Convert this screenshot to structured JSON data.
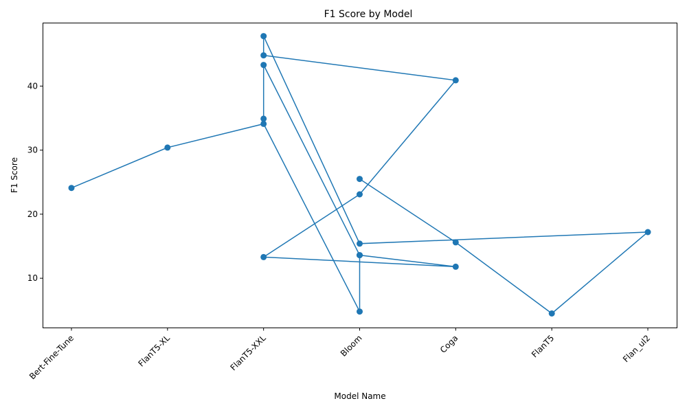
{
  "chart_data": {
    "type": "line",
    "title": "F1 Score by Model",
    "xlabel": "Model Name",
    "ylabel": "F1 Score",
    "categories": [
      "Bert-Fine-Tune",
      "FlanT5-XL",
      "FlanT5-XXL",
      "Bloom",
      "Coga",
      "FlanT5",
      "Flan_ul2"
    ],
    "points": [
      {
        "x": "Bert-Fine-Tune",
        "y": 24.1
      },
      {
        "x": "FlanT5-XL",
        "y": 30.4
      },
      {
        "x": "FlanT5-XXL",
        "y": 34.1
      },
      {
        "x": "Bloom",
        "y": 4.8
      },
      {
        "x": "Bloom",
        "y": 13.6
      },
      {
        "x": "Coga",
        "y": 11.8
      },
      {
        "x": "FlanT5-XXL",
        "y": 13.3
      },
      {
        "x": "Bloom",
        "y": 23.1
      },
      {
        "x": "Coga",
        "y": 40.9
      },
      {
        "x": "FlanT5-XXL",
        "y": 44.8
      },
      {
        "x": "FlanT5-XXL",
        "y": 47.8
      },
      {
        "x": "Bloom",
        "y": 15.4
      },
      {
        "x": "Flan_ul2",
        "y": 17.2
      },
      {
        "x": "FlanT5",
        "y": 4.5
      },
      {
        "x": "Coga",
        "y": 15.6
      },
      {
        "x": "Bloom",
        "y": 25.5
      }
    ],
    "extra_segment": [
      {
        "x": "FlanT5-XXL",
        "y": 34.9
      },
      {
        "x": "FlanT5-XXL",
        "y": 43.3
      },
      {
        "x": "Bloom",
        "y": 13.6
      }
    ],
    "ylim": [
      2.3,
      49.9
    ],
    "yticks": [
      10,
      20,
      30,
      40
    ],
    "grid": false,
    "colors": {
      "line": "#1f77b4",
      "marker": "#1f77b4"
    }
  }
}
